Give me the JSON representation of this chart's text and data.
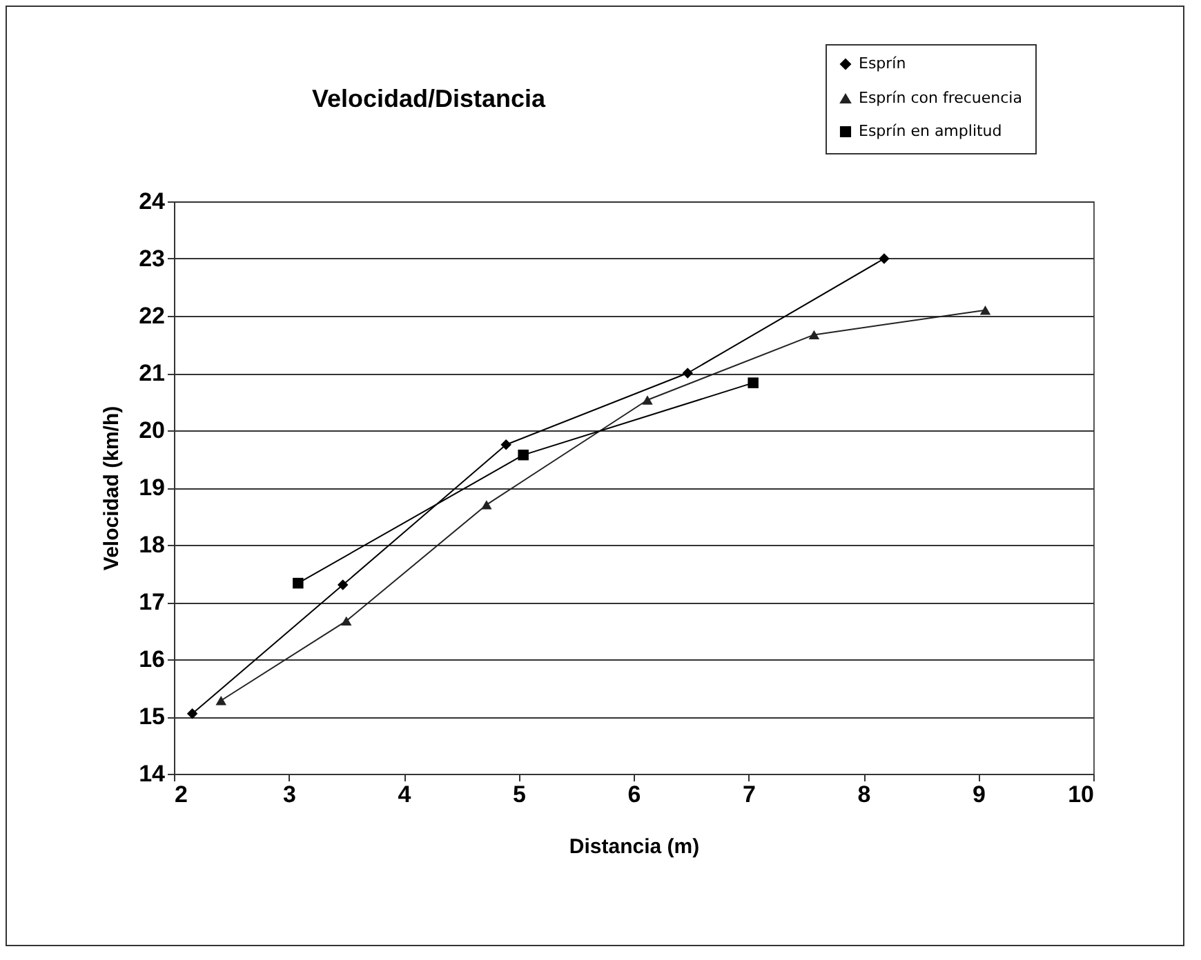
{
  "chart_data": {
    "type": "line",
    "title": "Velocidad/Distancia",
    "xlabel": "Distancia (m)",
    "ylabel": "Velocidad (km/h)",
    "xlim": [
      2,
      10
    ],
    "xticks": [
      2,
      3,
      4,
      5,
      6,
      7,
      8,
      9,
      10
    ],
    "ylim": [
      14,
      24
    ],
    "yticks": [
      14,
      15,
      16,
      17,
      18,
      19,
      20,
      21,
      22,
      23,
      24
    ],
    "grid": "y",
    "legend": "top right",
    "line_style": "solid",
    "series": [
      {
        "name": "Esprín",
        "color": "#000000",
        "marker": "diamond",
        "x": [
          2.16,
          3.47,
          4.89,
          6.47,
          8.18
        ],
        "values": [
          15.05,
          17.3,
          19.75,
          21.0,
          23.0
        ]
      },
      {
        "name": "Esprín con frecuencia",
        "color": "#222222",
        "marker": "triangle",
        "x": [
          2.41,
          3.5,
          4.72,
          6.12,
          7.57,
          9.06
        ],
        "values": [
          15.28,
          16.67,
          18.7,
          20.53,
          21.67,
          22.1
        ]
      },
      {
        "name": "Esprín en amplitud",
        "color": "#000000",
        "marker": "square",
        "x": [
          3.08,
          5.04,
          7.04
        ],
        "values": [
          17.33,
          19.57,
          20.83
        ]
      }
    ]
  }
}
